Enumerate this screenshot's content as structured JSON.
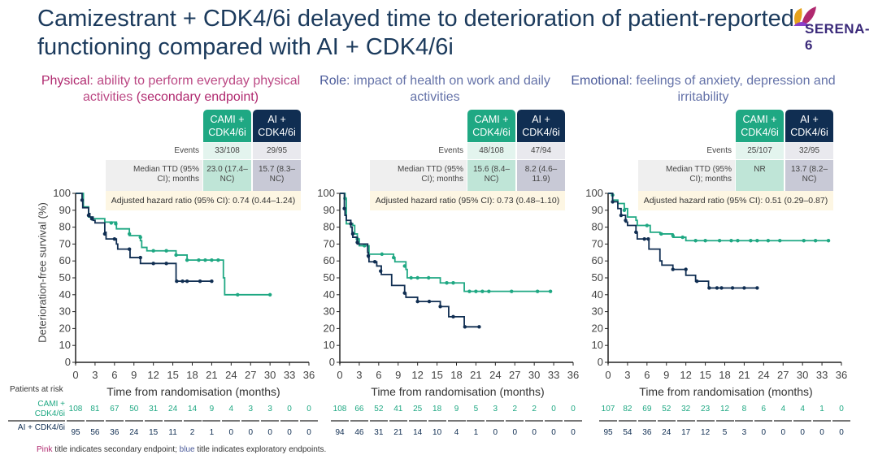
{
  "title": "Camizestrant + CDK4/6i delayed time to deterioration of patient-reported functioning compared with AI + CDK4/6i",
  "logo": "SERENA-6",
  "colors": {
    "cami": "#1fa883",
    "ai": "#102e52",
    "pink": "#b0296f",
    "blue": "#4a5a9a",
    "title": "#1b3a5c"
  },
  "arm_headers": {
    "cami": "CAMI + CDK4/6i",
    "ai": "AI + CDK4/6i"
  },
  "row_labels": {
    "events": "Events",
    "median": "Median TTD (95% CI); months"
  },
  "patients_at_risk": {
    "label": "Patients at risk",
    "cami": "CAMI + CDK4/6i",
    "ai": "AI + CDK4/6i"
  },
  "footnote": {
    "pink": "Pink",
    "mid": " title indicates secondary endpoint; ",
    "blue": "blue",
    "end": " title indicates exploratory endpoints."
  },
  "chart_data": [
    {
      "type": "line",
      "title_bold": "Physical",
      "title_rest": ": ability to perform everyday physical activities ",
      "title_tail": "(secondary endpoint)",
      "title_color": "pink",
      "events": {
        "cami": "33/108",
        "ai": "29/95"
      },
      "median": {
        "cami": "23.0 (17.4–NC)",
        "ai": "15.7 (8.3–NC)"
      },
      "hazard_ratio": "Adjusted hazard ratio (95% CI): 0.74 (0.44–1.24)",
      "xlabel": "Time from randomisation (months)",
      "ylabel": "Deterioration-free survival (%)",
      "xticks": [
        0,
        3,
        6,
        9,
        12,
        15,
        18,
        21,
        24,
        27,
        30,
        33,
        36
      ],
      "yticks": [
        0,
        10,
        20,
        30,
        40,
        50,
        60,
        70,
        80,
        90,
        100
      ],
      "xlim": [
        0,
        36
      ],
      "ylim": [
        0,
        100
      ],
      "series": [
        {
          "arm": "cami",
          "steps": [
            [
              0,
              100
            ],
            [
              1.2,
              92
            ],
            [
              2,
              86
            ],
            [
              2.5,
              85
            ],
            [
              4.5,
              83
            ],
            [
              6.3,
              79
            ],
            [
              8.3,
              75
            ],
            [
              10,
              72
            ],
            [
              10.2,
              68
            ],
            [
              11,
              66
            ],
            [
              15.5,
              63.5
            ],
            [
              17.2,
              60.5
            ],
            [
              22.8,
              50
            ],
            [
              23,
              40
            ],
            [
              30,
              40
            ]
          ],
          "censored": [
            [
              2.5,
              85
            ],
            [
              5.5,
              82.5
            ],
            [
              6.2,
              82
            ],
            [
              8.3,
              76
            ],
            [
              10,
              74
            ],
            [
              12,
              66
            ],
            [
              14,
              66
            ],
            [
              15.5,
              63.5
            ],
            [
              17.2,
              60.5
            ],
            [
              19,
              60.5
            ],
            [
              20,
              60.5
            ],
            [
              21,
              60.5
            ],
            [
              22,
              60.5
            ],
            [
              25,
              40
            ],
            [
              30,
              40
            ]
          ]
        },
        {
          "arm": "ai",
          "steps": [
            [
              0,
              100
            ],
            [
              1,
              96
            ],
            [
              1.1,
              91.5
            ],
            [
              2,
              88
            ],
            [
              2.2,
              86
            ],
            [
              2.7,
              84
            ],
            [
              3,
              82.5
            ],
            [
              4.5,
              77
            ],
            [
              4.7,
              73
            ],
            [
              6.3,
              70
            ],
            [
              6.5,
              67
            ],
            [
              8.4,
              62
            ],
            [
              10,
              58.5
            ],
            [
              15.5,
              48
            ],
            [
              21,
              48
            ]
          ],
          "censored": [
            [
              1,
              96
            ],
            [
              2,
              87
            ],
            [
              2.5,
              85
            ],
            [
              4.5,
              76
            ],
            [
              6,
              73
            ],
            [
              8.3,
              67
            ],
            [
              10,
              62
            ],
            [
              12,
              58.5
            ],
            [
              14,
              58.5
            ],
            [
              15.6,
              48
            ],
            [
              16.5,
              48
            ],
            [
              17.2,
              48
            ],
            [
              19.2,
              48
            ],
            [
              21,
              48
            ]
          ]
        }
      ],
      "risk": {
        "cami": [
          108,
          81,
          67,
          50,
          31,
          24,
          14,
          9,
          4,
          3,
          3,
          0,
          0
        ],
        "ai": [
          95,
          56,
          36,
          24,
          15,
          11,
          2,
          1,
          0,
          0,
          0,
          0,
          0
        ]
      }
    },
    {
      "type": "line",
      "title_bold": "Role",
      "title_rest": ": impact of health on work and daily activities",
      "title_tail": "",
      "title_color": "blue",
      "events": {
        "cami": "48/108",
        "ai": "47/94"
      },
      "median": {
        "cami": "15.6 (8.4–NC)",
        "ai": "8.2 (4.6–11.9)"
      },
      "hazard_ratio": "Adjusted hazard ratio (95% CI): 0.73 (0.48–1.10)",
      "xlabel": "Time from randomisation (months)",
      "xticks": [
        0,
        3,
        6,
        9,
        12,
        15,
        18,
        21,
        24,
        27,
        30,
        33,
        36
      ],
      "yticks": [
        0,
        10,
        20,
        30,
        40,
        50,
        60,
        70,
        80,
        90,
        100
      ],
      "xlim": [
        0,
        36
      ],
      "ylim": [
        0,
        100
      ],
      "series": [
        {
          "arm": "cami",
          "steps": [
            [
              0,
              100
            ],
            [
              0.8,
              97
            ],
            [
              1,
              82
            ],
            [
              2,
              81
            ],
            [
              2.3,
              76
            ],
            [
              2.7,
              73
            ],
            [
              3,
              69
            ],
            [
              4.5,
              64
            ],
            [
              8.3,
              62
            ],
            [
              8.5,
              59.5
            ],
            [
              10.2,
              55
            ],
            [
              10.4,
              50
            ],
            [
              15.5,
              47
            ],
            [
              19.2,
              42
            ],
            [
              32.5,
              42
            ]
          ],
          "censored": [
            [
              0.8,
              97
            ],
            [
              2.7,
              73
            ],
            [
              3.8,
              69
            ],
            [
              6.5,
              64
            ],
            [
              8.3,
              62
            ],
            [
              10,
              57
            ],
            [
              11,
              50
            ],
            [
              12,
              50
            ],
            [
              13.7,
              50
            ],
            [
              16.5,
              47
            ],
            [
              17.5,
              47
            ],
            [
              20,
              42
            ],
            [
              21,
              42
            ],
            [
              22,
              42
            ],
            [
              23,
              42
            ],
            [
              26.5,
              42
            ],
            [
              30.5,
              42
            ],
            [
              32.5,
              42
            ]
          ]
        },
        {
          "arm": "ai",
          "steps": [
            [
              0,
              100
            ],
            [
              0.7,
              91
            ],
            [
              0.8,
              87
            ],
            [
              1,
              84
            ],
            [
              1.7,
              80
            ],
            [
              1.9,
              77
            ],
            [
              2,
              74
            ],
            [
              2.7,
              70
            ],
            [
              4.3,
              65
            ],
            [
              4.4,
              62
            ],
            [
              4.5,
              59.5
            ],
            [
              5.7,
              57
            ],
            [
              6.4,
              52
            ],
            [
              8,
              45.5
            ],
            [
              10,
              41
            ],
            [
              10.2,
              38.5
            ],
            [
              12,
              36
            ],
            [
              15.5,
              33
            ],
            [
              16.8,
              27
            ],
            [
              19.2,
              21
            ],
            [
              21.5,
              21
            ]
          ],
          "censored": [
            [
              0.7,
              91
            ],
            [
              1.7,
              82
            ],
            [
              2,
              76
            ],
            [
              2.7,
              71
            ],
            [
              4.4,
              63
            ],
            [
              5.4,
              59.5
            ],
            [
              6.3,
              54
            ],
            [
              10,
              41
            ],
            [
              12,
              36
            ],
            [
              13.8,
              36
            ],
            [
              15.5,
              33
            ],
            [
              17.5,
              27
            ],
            [
              19.3,
              21
            ],
            [
              21.5,
              21
            ]
          ]
        }
      ],
      "risk": {
        "cami": [
          108,
          66,
          52,
          41,
          25,
          18,
          9,
          5,
          3,
          2,
          2,
          0,
          0
        ],
        "ai": [
          94,
          46,
          31,
          21,
          14,
          10,
          4,
          1,
          0,
          0,
          0,
          0,
          0
        ]
      }
    },
    {
      "type": "line",
      "title_bold": "Emotional",
      "title_rest": ": feelings of anxiety, depression and irritability",
      "title_tail": "",
      "title_color": "blue",
      "events": {
        "cami": "25/107",
        "ai": "32/95"
      },
      "median": {
        "cami": "NR",
        "ai": "13.7 (8.2–NC)"
      },
      "hazard_ratio": "Adjusted hazard ratio (95% CI): 0.51 (0.29–0.87)",
      "xlabel": "Time from randomisation (months)",
      "xticks": [
        0,
        3,
        6,
        9,
        12,
        15,
        18,
        21,
        24,
        27,
        30,
        33,
        36
      ],
      "yticks": [
        0,
        10,
        20,
        30,
        40,
        50,
        60,
        70,
        80,
        90,
        100
      ],
      "xlim": [
        0,
        36
      ],
      "ylim": [
        0,
        100
      ],
      "series": [
        {
          "arm": "cami",
          "steps": [
            [
              0,
              100
            ],
            [
              0.7,
              96
            ],
            [
              1.5,
              94
            ],
            [
              2.5,
              91
            ],
            [
              3,
              86
            ],
            [
              4.3,
              84
            ],
            [
              4.5,
              81
            ],
            [
              6.5,
              77
            ],
            [
              8,
              76
            ],
            [
              10,
              74
            ],
            [
              12,
              72
            ],
            [
              34,
              72
            ]
          ],
          "censored": [
            [
              0.7,
              99
            ],
            [
              2.5,
              90
            ],
            [
              6,
              81
            ],
            [
              8.2,
              76
            ],
            [
              10,
              75
            ],
            [
              11.5,
              74
            ],
            [
              13.5,
              72
            ],
            [
              15,
              72
            ],
            [
              17.2,
              72
            ],
            [
              19,
              72
            ],
            [
              20,
              72
            ],
            [
              22,
              72
            ],
            [
              23,
              72
            ],
            [
              24.7,
              72
            ],
            [
              26.5,
              72
            ],
            [
              30.2,
              72
            ],
            [
              32,
              72
            ],
            [
              34,
              72
            ]
          ]
        },
        {
          "arm": "ai",
          "steps": [
            [
              0,
              100
            ],
            [
              0.7,
              95
            ],
            [
              1.5,
              91
            ],
            [
              2,
              87
            ],
            [
              2.7,
              83
            ],
            [
              3,
              81
            ],
            [
              4.3,
              77
            ],
            [
              4.5,
              73
            ],
            [
              6.3,
              67
            ],
            [
              8,
              60
            ],
            [
              8.3,
              57.5
            ],
            [
              10,
              55
            ],
            [
              12,
              51.5
            ],
            [
              13.5,
              48
            ],
            [
              15.5,
              44
            ],
            [
              23,
              44
            ]
          ],
          "censored": [
            [
              0.7,
              95
            ],
            [
              2,
              87
            ],
            [
              2.7,
              84
            ],
            [
              4.3,
              77
            ],
            [
              5.6,
              73
            ],
            [
              6.2,
              73
            ],
            [
              10,
              55
            ],
            [
              12,
              55
            ],
            [
              13.7,
              48
            ],
            [
              15.6,
              44
            ],
            [
              16.8,
              44
            ],
            [
              17.5,
              44
            ],
            [
              19.2,
              44
            ],
            [
              21,
              44
            ],
            [
              23,
              44
            ]
          ]
        }
      ],
      "risk": {
        "cami": [
          107,
          82,
          69,
          52,
          32,
          23,
          12,
          8,
          6,
          4,
          4,
          1,
          0
        ],
        "ai": [
          95,
          54,
          36,
          24,
          17,
          12,
          5,
          3,
          0,
          0,
          0,
          0,
          0
        ]
      }
    }
  ]
}
